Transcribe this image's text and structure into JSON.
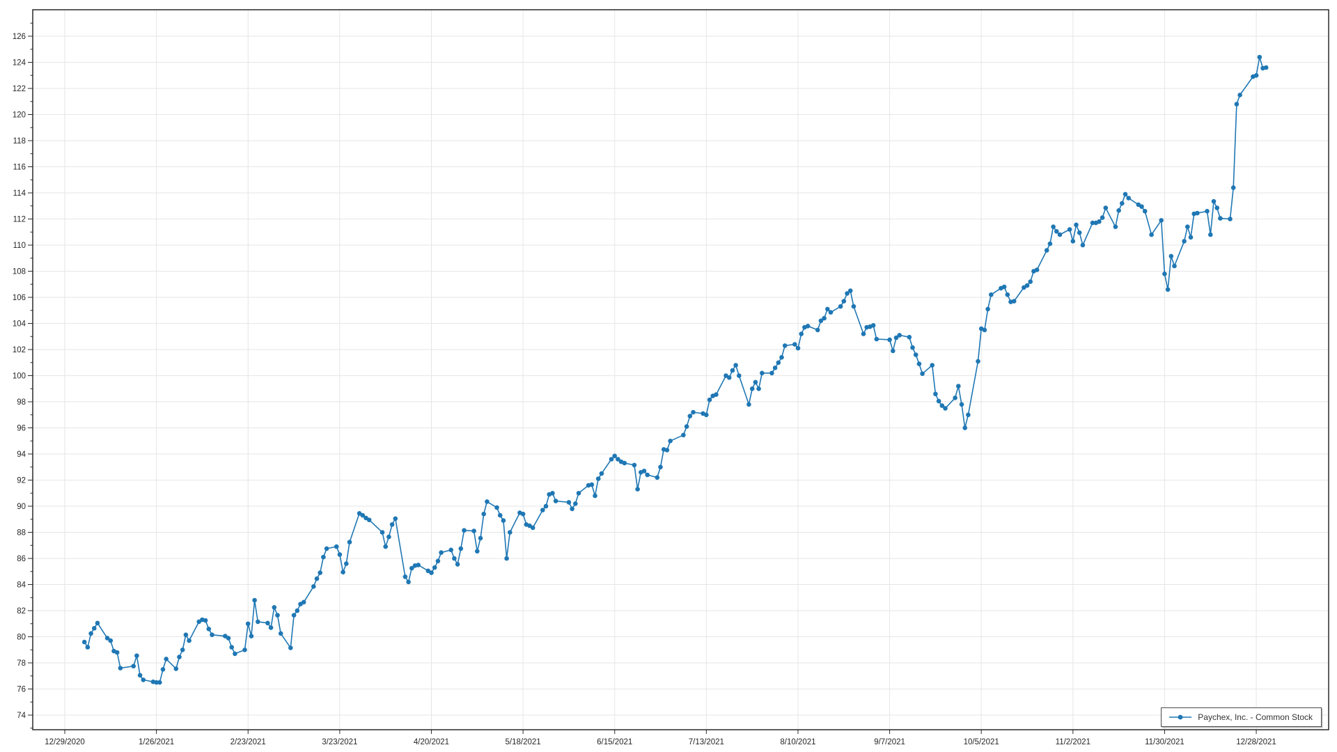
{
  "legend": {
    "label": "Paychex, Inc. - Common Stock"
  },
  "colors": {
    "series": "#1f77b4",
    "marker": "#1f77b4",
    "grid": "#e6e6e6",
    "axis_border": "#1a1a1a",
    "tick": "#2b2b2b",
    "label_text": "#262626",
    "background": "#ffffff"
  },
  "chart_data": {
    "type": "line",
    "title": "",
    "xlabel": "",
    "ylabel": "",
    "legend_position": "bottom-right",
    "grid": "on",
    "markers": "circle",
    "series": [
      {
        "name": "Paychex, Inc. - Common Stock",
        "start_date": "2021-01-04",
        "end_date": "2021-12-31",
        "frequency": "trading-days",
        "market_holidays": [
          "2021-01-18",
          "2021-02-15",
          "2021-04-02",
          "2021-05-31",
          "2021-07-05",
          "2021-09-06",
          "2021-11-25",
          "2021-12-24"
        ],
        "values": [
          79.6,
          79.2,
          80.25,
          80.65,
          81.05,
          79.9,
          79.7,
          78.9,
          78.8,
          77.6,
          77.75,
          78.55,
          77.05,
          76.7,
          76.55,
          76.5,
          76.5,
          77.5,
          78.3,
          77.55,
          78.45,
          79.0,
          80.15,
          79.7,
          81.15,
          81.3,
          81.25,
          80.6,
          80.15,
          80.05,
          79.9,
          79.2,
          78.7,
          79.0,
          81.0,
          80.05,
          82.8,
          81.15,
          81.05,
          80.7,
          82.25,
          81.65,
          80.25,
          79.15,
          81.65,
          82.0,
          82.5,
          82.65,
          83.85,
          84.45,
          84.9,
          86.1,
          86.75,
          86.9,
          86.3,
          84.95,
          85.6,
          87.25,
          89.45,
          89.3,
          89.1,
          88.95,
          88.0,
          86.9,
          87.65,
          88.6,
          89.05,
          84.6,
          84.2,
          85.25,
          85.45,
          85.5,
          85.05,
          84.9,
          85.3,
          85.8,
          86.45,
          86.65,
          86.0,
          85.55,
          86.75,
          88.15,
          88.1,
          86.55,
          87.55,
          89.4,
          90.35,
          89.9,
          89.3,
          88.9,
          86.0,
          88.0,
          89.5,
          89.4,
          88.6,
          88.5,
          88.35,
          89.7,
          90.0,
          90.9,
          91.0,
          90.4,
          90.3,
          89.8,
          90.2,
          91.0,
          91.6,
          91.65,
          90.8,
          92.1,
          92.5,
          93.6,
          93.85,
          93.6,
          93.4,
          93.3,
          93.15,
          91.3,
          92.6,
          92.7,
          92.4,
          92.2,
          93.0,
          94.35,
          94.3,
          95.0,
          95.45,
          96.1,
          96.9,
          97.2,
          97.1,
          97.0,
          98.15,
          98.45,
          98.55,
          100.0,
          99.85,
          100.4,
          100.8,
          100.0,
          97.8,
          99.0,
          99.5,
          99.0,
          100.2,
          100.2,
          100.6,
          101.0,
          101.4,
          102.3,
          102.4,
          102.1,
          103.2,
          103.7,
          103.8,
          103.5,
          104.2,
          104.4,
          105.1,
          104.85,
          105.3,
          105.7,
          106.3,
          106.5,
          105.3,
          103.2,
          103.7,
          103.75,
          103.85,
          102.8,
          102.75,
          101.9,
          102.9,
          103.1,
          102.95,
          102.15,
          101.6,
          100.9,
          100.15,
          100.8,
          98.6,
          98.05,
          97.7,
          97.5,
          98.3,
          99.2,
          97.8,
          96.0,
          97.0,
          101.1,
          103.6,
          103.5,
          105.1,
          106.2,
          106.7,
          106.8,
          106.2,
          105.65,
          105.7,
          106.75,
          106.9,
          107.2,
          108.0,
          108.1,
          109.6,
          110.1,
          111.4,
          111.05,
          110.8,
          111.2,
          110.3,
          111.55,
          110.95,
          110.0,
          111.7,
          111.7,
          111.8,
          112.1,
          112.85,
          111.4,
          112.65,
          113.2,
          113.9,
          113.6,
          113.1,
          112.95,
          112.6,
          110.8,
          111.9,
          107.8,
          106.6,
          109.15,
          108.4,
          110.3,
          111.4,
          110.6,
          112.4,
          112.45,
          112.6,
          110.8,
          113.35,
          112.85,
          112.05,
          112.0,
          114.4,
          120.8,
          121.5,
          122.9,
          123.0,
          124.4,
          123.55,
          123.6
        ]
      }
    ],
    "x_axis": {
      "tick_start_date": "2020-12-29",
      "tick_interval_days": 28,
      "tick_labels": [
        "12/29/2020",
        "1/26/2021",
        "2/23/2021",
        "3/23/2021",
        "4/20/2021",
        "5/18/2021",
        "6/15/2021",
        "7/13/2021",
        "8/10/2021",
        "9/7/2021",
        "10/5/2021",
        "11/2/2021",
        "11/30/2021",
        "12/28/2021"
      ]
    },
    "y_axis": {
      "tick_labels": [
        "74",
        "76",
        "78",
        "80",
        "82",
        "84",
        "86",
        "88",
        "90",
        "92",
        "94",
        "96",
        "98",
        "100",
        "102",
        "104",
        "106",
        "108",
        "110",
        "112",
        "114",
        "116",
        "118",
        "120",
        "122",
        "124",
        "126"
      ],
      "major_tick_step": 2,
      "minor_tick_step": 1,
      "ylim": [
        72.9,
        128.0
      ]
    }
  }
}
